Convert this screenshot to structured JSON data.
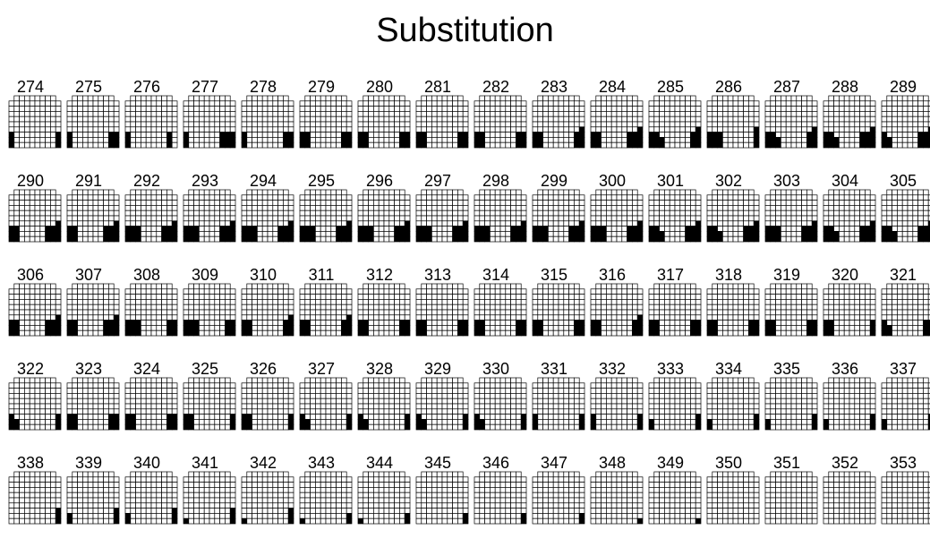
{
  "title": "Substitution",
  "patterns": [
    {
      "n": "274",
      "L": [
        3,
        0,
        0,
        0,
        0
      ],
      "R": [
        0,
        0,
        0,
        0,
        3
      ]
    },
    {
      "n": "275",
      "L": [
        3,
        0,
        0,
        0,
        0
      ],
      "R": [
        0,
        0,
        0,
        3,
        3
      ]
    },
    {
      "n": "276",
      "L": [
        3,
        0,
        0,
        0,
        0
      ],
      "R": [
        0,
        0,
        0,
        3,
        0
      ]
    },
    {
      "n": "277",
      "L": [
        3,
        0,
        0,
        0,
        0
      ],
      "R": [
        0,
        0,
        3,
        3,
        3
      ]
    },
    {
      "n": "278",
      "L": [
        3,
        0,
        0,
        0,
        0
      ],
      "R": [
        0,
        0,
        0,
        3,
        3
      ]
    },
    {
      "n": "279",
      "L": [
        3,
        3,
        0,
        0,
        0
      ],
      "R": [
        0,
        0,
        0,
        3,
        3
      ]
    },
    {
      "n": "280",
      "L": [
        3,
        3,
        0,
        0,
        0
      ],
      "R": [
        0,
        0,
        0,
        3,
        3
      ]
    },
    {
      "n": "281",
      "L": [
        3,
        3,
        0,
        0,
        0
      ],
      "R": [
        0,
        0,
        0,
        3,
        3
      ]
    },
    {
      "n": "282",
      "L": [
        3,
        3,
        0,
        0,
        0
      ],
      "R": [
        0,
        0,
        0,
        3,
        3
      ]
    },
    {
      "n": "283",
      "L": [
        3,
        3,
        0,
        0,
        0
      ],
      "R": [
        0,
        0,
        0,
        3,
        4
      ]
    },
    {
      "n": "284",
      "L": [
        3,
        3,
        0,
        0,
        0
      ],
      "R": [
        0,
        0,
        3,
        3,
        4
      ]
    },
    {
      "n": "285",
      "L": [
        3,
        3,
        2,
        0,
        0
      ],
      "R": [
        0,
        0,
        0,
        3,
        4
      ]
    },
    {
      "n": "286",
      "L": [
        3,
        3,
        3,
        0,
        0
      ],
      "R": [
        0,
        0,
        0,
        0,
        4
      ]
    },
    {
      "n": "287",
      "L": [
        3,
        3,
        2,
        0,
        0
      ],
      "R": [
        0,
        0,
        0,
        3,
        4
      ]
    },
    {
      "n": "288",
      "L": [
        3,
        3,
        2,
        0,
        0
      ],
      "R": [
        0,
        0,
        3,
        3,
        4
      ]
    },
    {
      "n": "289",
      "L": [
        3,
        2,
        0,
        0,
        0
      ],
      "R": [
        0,
        0,
        3,
        3,
        4
      ]
    },
    {
      "n": "290",
      "L": [
        3,
        3,
        0,
        0,
        0
      ],
      "R": [
        0,
        0,
        3,
        3,
        4
      ]
    },
    {
      "n": "291",
      "L": [
        3,
        3,
        0,
        0,
        0
      ],
      "R": [
        0,
        0,
        3,
        3,
        4
      ]
    },
    {
      "n": "292",
      "L": [
        3,
        3,
        3,
        0,
        0
      ],
      "R": [
        0,
        0,
        3,
        3,
        4
      ]
    },
    {
      "n": "293",
      "L": [
        3,
        3,
        3,
        0,
        0
      ],
      "R": [
        0,
        0,
        3,
        3,
        4
      ]
    },
    {
      "n": "294",
      "L": [
        3,
        3,
        3,
        0,
        0
      ],
      "R": [
        0,
        0,
        3,
        3,
        4
      ]
    },
    {
      "n": "295",
      "L": [
        3,
        3,
        3,
        0,
        0
      ],
      "R": [
        0,
        0,
        3,
        3,
        4
      ]
    },
    {
      "n": "296",
      "L": [
        3,
        3,
        3,
        0,
        0
      ],
      "R": [
        0,
        0,
        3,
        3,
        4
      ]
    },
    {
      "n": "297",
      "L": [
        3,
        3,
        3,
        0,
        0
      ],
      "R": [
        0,
        0,
        3,
        3,
        4
      ]
    },
    {
      "n": "298",
      "L": [
        3,
        3,
        3,
        0,
        0
      ],
      "R": [
        0,
        0,
        3,
        3,
        4
      ]
    },
    {
      "n": "299",
      "L": [
        3,
        3,
        3,
        0,
        0
      ],
      "R": [
        0,
        0,
        3,
        3,
        4
      ]
    },
    {
      "n": "300",
      "L": [
        3,
        3,
        3,
        0,
        0
      ],
      "R": [
        0,
        0,
        3,
        3,
        4
      ]
    },
    {
      "n": "301",
      "L": [
        3,
        3,
        2,
        0,
        0
      ],
      "R": [
        0,
        0,
        3,
        3,
        4
      ]
    },
    {
      "n": "302",
      "L": [
        3,
        3,
        2,
        0,
        0
      ],
      "R": [
        0,
        0,
        3,
        3,
        4
      ]
    },
    {
      "n": "303",
      "L": [
        3,
        3,
        3,
        0,
        0
      ],
      "R": [
        0,
        0,
        3,
        3,
        4
      ]
    },
    {
      "n": "304",
      "L": [
        3,
        3,
        2,
        0,
        0
      ],
      "R": [
        0,
        0,
        3,
        3,
        4
      ]
    },
    {
      "n": "305",
      "L": [
        3,
        3,
        2,
        0,
        0
      ],
      "R": [
        0,
        0,
        3,
        3,
        4
      ]
    },
    {
      "n": "306",
      "L": [
        3,
        3,
        0,
        0,
        0
      ],
      "R": [
        0,
        0,
        3,
        3,
        4
      ]
    },
    {
      "n": "307",
      "L": [
        3,
        3,
        0,
        0,
        0
      ],
      "R": [
        0,
        0,
        3,
        3,
        4
      ]
    },
    {
      "n": "308",
      "L": [
        3,
        3,
        3,
        0,
        0
      ],
      "R": [
        0,
        0,
        0,
        3,
        3
      ]
    },
    {
      "n": "309",
      "L": [
        3,
        3,
        3,
        0,
        0
      ],
      "R": [
        0,
        0,
        0,
        3,
        3
      ]
    },
    {
      "n": "310",
      "L": [
        3,
        3,
        0,
        0,
        0
      ],
      "R": [
        0,
        0,
        0,
        3,
        4
      ]
    },
    {
      "n": "311",
      "L": [
        3,
        3,
        0,
        0,
        0
      ],
      "R": [
        0,
        0,
        0,
        3,
        4
      ]
    },
    {
      "n": "312",
      "L": [
        3,
        3,
        0,
        0,
        0
      ],
      "R": [
        0,
        0,
        0,
        3,
        3
      ]
    },
    {
      "n": "313",
      "L": [
        3,
        3,
        0,
        0,
        0
      ],
      "R": [
        0,
        0,
        0,
        3,
        3
      ]
    },
    {
      "n": "314",
      "L": [
        3,
        3,
        0,
        0,
        0
      ],
      "R": [
        0,
        0,
        0,
        3,
        3
      ]
    },
    {
      "n": "315",
      "L": [
        3,
        3,
        0,
        0,
        0
      ],
      "R": [
        0,
        0,
        0,
        3,
        3
      ]
    },
    {
      "n": "316",
      "L": [
        3,
        3,
        0,
        0,
        0
      ],
      "R": [
        0,
        0,
        0,
        3,
        4
      ]
    },
    {
      "n": "317",
      "L": [
        3,
        3,
        0,
        0,
        0
      ],
      "R": [
        0,
        0,
        0,
        3,
        3
      ]
    },
    {
      "n": "318",
      "L": [
        3,
        3,
        0,
        0,
        0
      ],
      "R": [
        0,
        0,
        0,
        3,
        3
      ]
    },
    {
      "n": "319",
      "L": [
        3,
        3,
        0,
        0,
        0
      ],
      "R": [
        0,
        0,
        0,
        3,
        3
      ]
    },
    {
      "n": "320",
      "L": [
        3,
        3,
        0,
        0,
        0
      ],
      "R": [
        0,
        0,
        0,
        0,
        3
      ]
    },
    {
      "n": "321",
      "L": [
        3,
        2,
        0,
        0,
        0
      ],
      "R": [
        0,
        0,
        0,
        3,
        3
      ]
    },
    {
      "n": "322",
      "L": [
        3,
        2,
        0,
        0,
        0
      ],
      "R": [
        0,
        0,
        0,
        0,
        3
      ]
    },
    {
      "n": "323",
      "L": [
        3,
        3,
        0,
        0,
        0
      ],
      "R": [
        0,
        0,
        0,
        3,
        3
      ]
    },
    {
      "n": "324",
      "L": [
        3,
        3,
        0,
        0,
        0
      ],
      "R": [
        0,
        0,
        0,
        3,
        3
      ]
    },
    {
      "n": "325",
      "L": [
        3,
        3,
        0,
        0,
        0
      ],
      "R": [
        0,
        0,
        0,
        0,
        3
      ]
    },
    {
      "n": "326",
      "L": [
        3,
        3,
        0,
        0,
        0
      ],
      "R": [
        0,
        0,
        0,
        0,
        3
      ]
    },
    {
      "n": "327",
      "L": [
        3,
        2,
        0,
        0,
        0
      ],
      "R": [
        0,
        0,
        0,
        0,
        3
      ]
    },
    {
      "n": "328",
      "L": [
        3,
        2,
        0,
        0,
        0
      ],
      "R": [
        0,
        0,
        0,
        0,
        3
      ]
    },
    {
      "n": "329",
      "L": [
        3,
        2,
        0,
        0,
        0
      ],
      "R": [
        0,
        0,
        0,
        0,
        3
      ]
    },
    {
      "n": "330",
      "L": [
        3,
        2,
        0,
        0,
        0
      ],
      "R": [
        0,
        0,
        0,
        0,
        3
      ]
    },
    {
      "n": "331",
      "L": [
        3,
        0,
        0,
        0,
        0
      ],
      "R": [
        0,
        0,
        0,
        0,
        3
      ]
    },
    {
      "n": "332",
      "L": [
        3,
        0,
        0,
        0,
        0
      ],
      "R": [
        0,
        0,
        0,
        0,
        3
      ]
    },
    {
      "n": "333",
      "L": [
        2,
        0,
        0,
        0,
        0
      ],
      "R": [
        0,
        0,
        0,
        0,
        3
      ]
    },
    {
      "n": "334",
      "L": [
        2,
        0,
        0,
        0,
        0
      ],
      "R": [
        0,
        0,
        0,
        0,
        3
      ]
    },
    {
      "n": "335",
      "L": [
        2,
        0,
        0,
        0,
        0
      ],
      "R": [
        0,
        0,
        0,
        0,
        3
      ]
    },
    {
      "n": "336",
      "L": [
        2,
        0,
        0,
        0,
        0
      ],
      "R": [
        0,
        0,
        0,
        0,
        3
      ]
    },
    {
      "n": "337",
      "L": [
        2,
        0,
        0,
        0,
        0
      ],
      "R": [
        0,
        0,
        0,
        0,
        3
      ]
    },
    {
      "n": "338",
      "L": [
        0,
        0,
        0,
        0,
        0
      ],
      "R": [
        0,
        0,
        0,
        0,
        3
      ]
    },
    {
      "n": "339",
      "L": [
        2,
        0,
        0,
        0,
        0
      ],
      "R": [
        0,
        0,
        0,
        0,
        3
      ]
    },
    {
      "n": "340",
      "L": [
        2,
        0,
        0,
        0,
        0
      ],
      "R": [
        0,
        0,
        0,
        0,
        3
      ]
    },
    {
      "n": "341",
      "L": [
        1,
        0,
        0,
        0,
        0
      ],
      "R": [
        0,
        0,
        0,
        0,
        3
      ]
    },
    {
      "n": "342",
      "L": [
        1,
        0,
        0,
        0,
        0
      ],
      "R": [
        0,
        0,
        0,
        0,
        3
      ]
    },
    {
      "n": "343",
      "L": [
        1,
        0,
        0,
        0,
        0
      ],
      "R": [
        0,
        0,
        0,
        0,
        2
      ]
    },
    {
      "n": "344",
      "L": [
        1,
        0,
        0,
        0,
        0
      ],
      "R": [
        0,
        0,
        0,
        0,
        2
      ]
    },
    {
      "n": "345",
      "L": [
        0,
        0,
        0,
        0,
        0
      ],
      "R": [
        0,
        0,
        0,
        0,
        2
      ]
    },
    {
      "n": "346",
      "L": [
        0,
        0,
        0,
        0,
        0
      ],
      "R": [
        0,
        0,
        0,
        0,
        2
      ]
    },
    {
      "n": "347",
      "L": [
        0,
        0,
        0,
        0,
        0
      ],
      "R": [
        0,
        0,
        0,
        0,
        2
      ]
    },
    {
      "n": "348",
      "L": [
        0,
        0,
        0,
        0,
        0
      ],
      "R": [
        0,
        0,
        0,
        0,
        1
      ]
    },
    {
      "n": "349",
      "L": [
        0,
        0,
        0,
        0,
        0
      ],
      "R": [
        0,
        0,
        0,
        0,
        1
      ]
    },
    {
      "n": "350",
      "L": [
        0,
        0,
        0,
        0,
        0
      ],
      "R": [
        0,
        0,
        0,
        0,
        0
      ]
    },
    {
      "n": "351",
      "L": [
        0,
        0,
        0,
        0,
        0
      ],
      "R": [
        0,
        0,
        0,
        0,
        0
      ]
    },
    {
      "n": "352",
      "L": [
        0,
        0,
        0,
        0,
        0
      ],
      "R": [
        0,
        0,
        0,
        0,
        0
      ]
    },
    {
      "n": "353",
      "L": [
        0,
        0,
        0,
        0,
        0
      ],
      "R": [
        0,
        0,
        0,
        0,
        0
      ]
    }
  ]
}
